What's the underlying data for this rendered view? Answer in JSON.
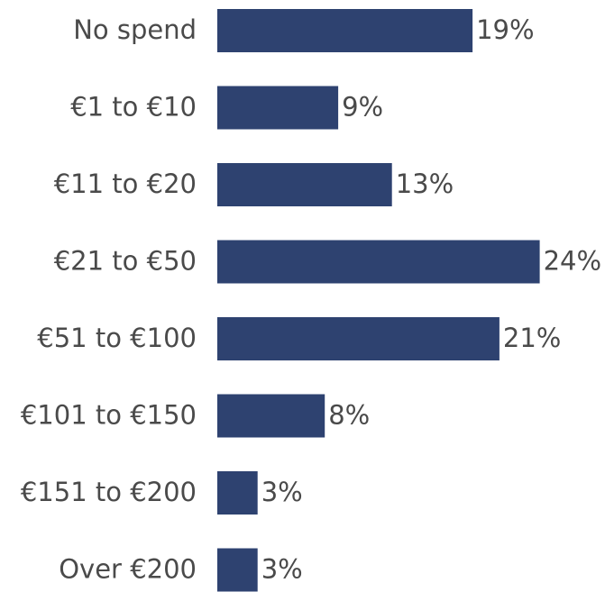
{
  "chart_data": {
    "type": "bar",
    "orientation": "horizontal",
    "categories": [
      "No spend",
      "€1 to €10",
      "€11 to €20",
      "€21 to €50",
      "€51 to €100",
      "€101 to €150",
      "€151 to €200",
      "Over €200"
    ],
    "values": [
      19,
      9,
      13,
      24,
      21,
      8,
      3,
      3
    ],
    "value_labels": [
      "19%",
      "9%",
      "13%",
      "24%",
      "21%",
      "8%",
      "3%",
      "3%"
    ],
    "color": "#2e4270"
  }
}
